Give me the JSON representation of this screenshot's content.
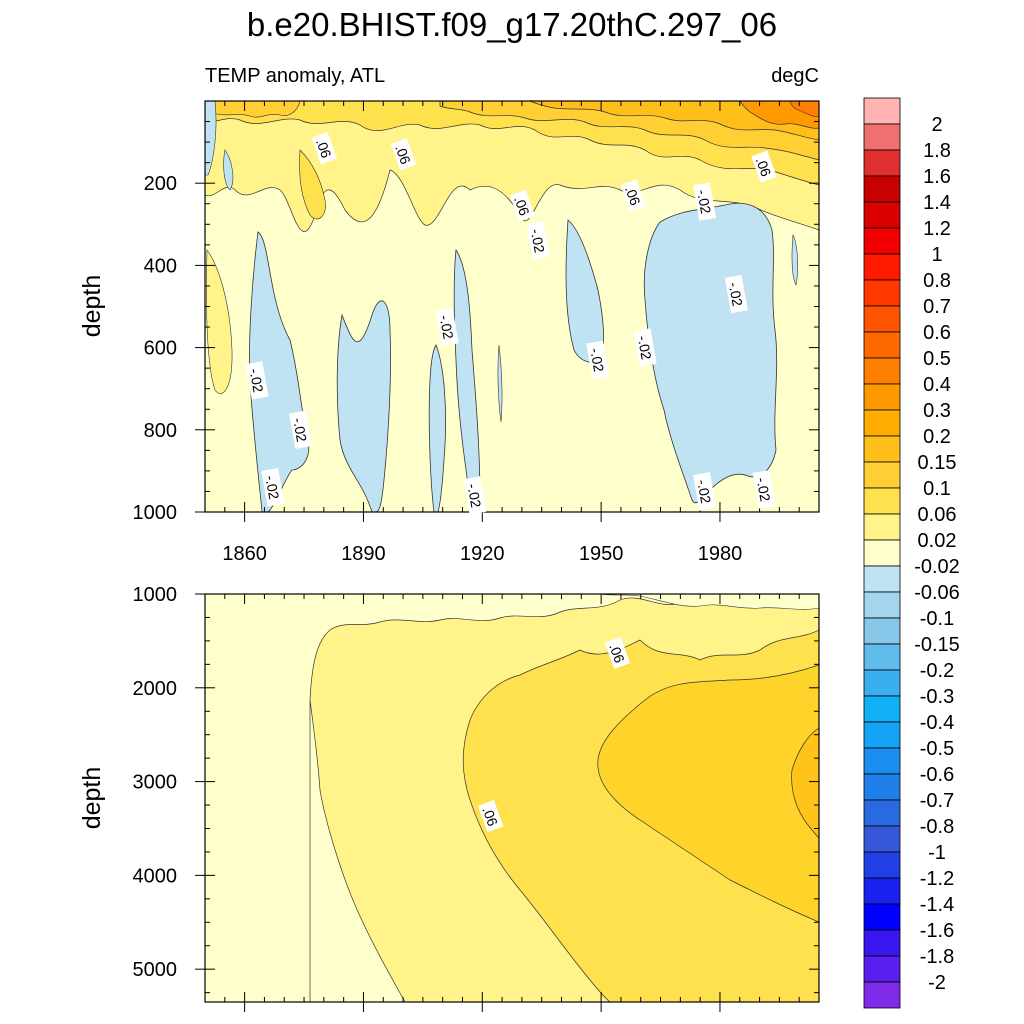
{
  "chart_data": [
    {
      "type": "contour",
      "title": "b.e20.BHIST.f09_g17.20thC.297_06",
      "left_label": "TEMP anomaly, ATL",
      "right_label": "degC",
      "ylabel": "depth",
      "xlim": [
        1850,
        2005
      ],
      "ylim": [
        1000,
        0
      ],
      "x_ticks": [
        1860,
        1890,
        1920,
        1950,
        1980
      ],
      "x_tick_labels": [
        "1860",
        "1890",
        "1920",
        "1950",
        "1980"
      ],
      "y_ticks": [
        200,
        400,
        600,
        800,
        1000
      ],
      "y_tick_labels": [
        "200",
        "400",
        "600",
        "800",
        "1000"
      ],
      "contour_labels": [
        {
          "text": ".06",
          "x": 1880,
          "y": 115
        },
        {
          "text": ".06",
          "x": 1900,
          "y": 130
        },
        {
          "text": ".06",
          "x": 1930,
          "y": 255
        },
        {
          "text": ".06",
          "x": 1958,
          "y": 230
        },
        {
          "text": ".06",
          "x": 1991,
          "y": 160
        },
        {
          "text": "-.02",
          "x": 1976,
          "y": 245
        },
        {
          "text": "-.02",
          "x": 1984,
          "y": 470
        },
        {
          "text": "-.02",
          "x": 1934,
          "y": 340
        },
        {
          "text": "-.02",
          "x": 1911,
          "y": 550
        },
        {
          "text": "-.02",
          "x": 1863,
          "y": 680
        },
        {
          "text": "-.02",
          "x": 1874,
          "y": 800
        },
        {
          "text": "-.02",
          "x": 1867,
          "y": 940
        },
        {
          "text": "-.02",
          "x": 1918,
          "y": 960
        },
        {
          "text": "-.02",
          "x": 1949,
          "y": 630
        },
        {
          "text": "-.02",
          "x": 1961,
          "y": 600
        },
        {
          "text": "-.02",
          "x": 1976,
          "y": 950
        },
        {
          "text": "-.02",
          "x": 1991,
          "y": 945
        }
      ]
    },
    {
      "type": "contour",
      "ylabel": "depth",
      "xlim": [
        1850,
        2005
      ],
      "ylim": [
        5350,
        1000
      ],
      "x_ticks": [
        1860,
        1890,
        1920,
        1950,
        1980
      ],
      "y_ticks": [
        1000,
        2000,
        3000,
        4000,
        5000
      ],
      "y_tick_labels": [
        "1000",
        "2000",
        "3000",
        "4000",
        "5000"
      ],
      "contour_labels": [
        {
          "text": ".06",
          "x": 1954,
          "y": 1630
        },
        {
          "text": ".06",
          "x": 1922,
          "y": 3370
        }
      ]
    }
  ],
  "colorbar": {
    "labels": [
      "2",
      "1.8",
      "1.6",
      "1.4",
      "1.2",
      "1",
      "0.8",
      "0.7",
      "0.6",
      "0.5",
      "0.4",
      "0.3",
      "0.2",
      "0.15",
      "0.1",
      "0.06",
      "0.02",
      "-0.02",
      "-0.06",
      "-0.1",
      "-0.15",
      "-0.2",
      "-0.3",
      "-0.4",
      "-0.5",
      "-0.6",
      "-0.7",
      "-0.8",
      "-1",
      "-1.2",
      "-1.4",
      "-1.6",
      "-1.8",
      "-2"
    ],
    "colors": [
      "#ffb3b3",
      "#f07070",
      "#e02f2f",
      "#c80000",
      "#dc0000",
      "#f00000",
      "#ff1a00",
      "#ff3800",
      "#ff5500",
      "#ff6a00",
      "#ff8000",
      "#ff9900",
      "#ffad00",
      "#ffbf1a",
      "#ffcf33",
      "#ffe04d",
      "#fff38a",
      "#ffffcc",
      "#bfe3f2",
      "#a3d5ee",
      "#87c8ea",
      "#61bbec",
      "#3aaeee",
      "#0fb0f5",
      "#14a3f5",
      "#1a8fef",
      "#2080ea",
      "#2a6ae0",
      "#3558d8",
      "#2040e6",
      "#1a22f0",
      "#0000ff",
      "#3a16f0",
      "#5a1ef0",
      "#7e2ae8"
    ]
  }
}
